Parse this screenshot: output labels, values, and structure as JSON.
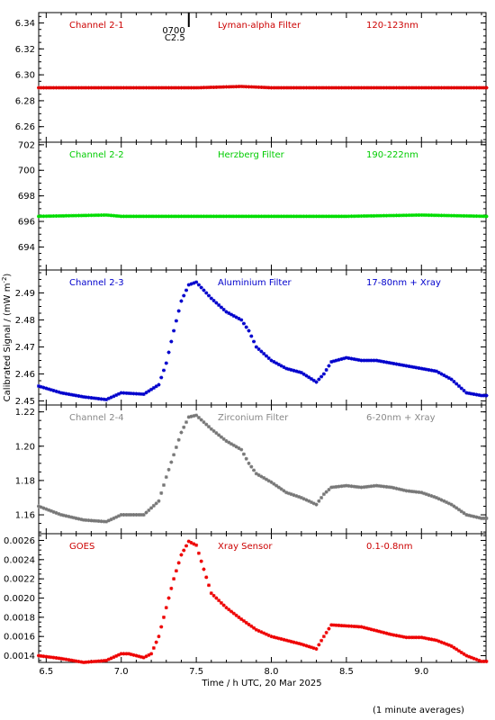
{
  "chart_data": {
    "type": "scatter",
    "xlabel": "Time / h UTC, 20 Mar 2025",
    "ylabel": "Calibrated Signal / (mW m",
    "ylabel_sup": "-2",
    "ylabel_close": ")",
    "footnote": "(1 minute averages)",
    "xlim": [
      6.45,
      9.43
    ],
    "xticks": [
      6.5,
      7.0,
      7.5,
      8.0,
      8.5,
      9.0
    ],
    "xtick_labels": [
      "6.5",
      "7.0",
      "7.5",
      "8.0",
      "8.5",
      "9.0"
    ],
    "event_marker": {
      "x": 7.45,
      "label_top": "0700",
      "label_bottom": "C2.5"
    },
    "panels": [
      {
        "channel": "Channel 2-1",
        "filter": "Lyman-alpha Filter",
        "band": "120-123nm",
        "color": "#e00000",
        "text_color": "#cc0000",
        "ylim": [
          6.248,
          6.348
        ],
        "yticks": [
          "6.26",
          "6.28",
          "6.30",
          "6.32",
          "6.34"
        ],
        "series": {
          "x": [
            6.45,
            7.0,
            7.5,
            7.8,
            8.0,
            8.5,
            9.0,
            9.43
          ],
          "y": [
            6.29,
            6.29,
            6.29,
            6.291,
            6.29,
            6.29,
            6.29,
            6.29
          ]
        }
      },
      {
        "channel": "Channel 2-2",
        "filter": "Herzberg Filter",
        "band": "190-222nm",
        "color": "#00dd00",
        "text_color": "#00cc00",
        "ylim": [
          692.2,
          702.2
        ],
        "yticks": [
          "694",
          "696",
          "698",
          "700",
          "702"
        ],
        "series": {
          "x": [
            6.45,
            6.9,
            7.0,
            7.5,
            8.0,
            8.5,
            9.0,
            9.43
          ],
          "y": [
            696.4,
            696.5,
            696.4,
            696.4,
            696.4,
            696.4,
            696.5,
            696.4
          ]
        }
      },
      {
        "channel": "Channel 2-3",
        "filter": "Aluminium Filter",
        "band": "17-80nm + Xray",
        "color": "#0000cc",
        "text_color": "#0000cc",
        "ylim": [
          2.4485,
          2.4985
        ],
        "yticks": [
          "2.45",
          "2.46",
          "2.47",
          "2.48",
          "2.49"
        ],
        "series": {
          "x": [
            6.45,
            6.6,
            6.75,
            6.9,
            7.0,
            7.15,
            7.25,
            7.3,
            7.35,
            7.4,
            7.45,
            7.5,
            7.6,
            7.7,
            7.8,
            7.85,
            7.9,
            8.0,
            8.1,
            8.2,
            8.3,
            8.35,
            8.4,
            8.5,
            8.6,
            8.7,
            8.8,
            8.9,
            9.0,
            9.1,
            9.2,
            9.3,
            9.4
          ],
          "y": [
            2.4555,
            2.453,
            2.4515,
            2.4505,
            2.453,
            2.4525,
            2.456,
            2.464,
            2.476,
            2.487,
            2.493,
            2.494,
            2.488,
            2.483,
            2.48,
            2.476,
            2.47,
            2.465,
            2.462,
            2.4605,
            2.457,
            2.46,
            2.4645,
            2.466,
            2.465,
            2.465,
            2.464,
            2.463,
            2.462,
            2.461,
            2.458,
            2.453,
            2.452
          ]
        }
      },
      {
        "channel": "Channel 2-4",
        "filter": "Zirconium Filter",
        "band": "6-20nm + Xray",
        "color": "#777777",
        "text_color": "#888888",
        "ylim": [
          1.149,
          1.224
        ],
        "yticks": [
          "1.16",
          "1.18",
          "1.20",
          "1.22"
        ],
        "series": {
          "x": [
            6.45,
            6.6,
            6.75,
            6.9,
            7.0,
            7.15,
            7.25,
            7.3,
            7.35,
            7.4,
            7.45,
            7.5,
            7.6,
            7.7,
            7.8,
            7.85,
            7.9,
            8.0,
            8.1,
            8.2,
            8.3,
            8.35,
            8.4,
            8.5,
            8.6,
            8.7,
            8.8,
            8.9,
            9.0,
            9.1,
            9.2,
            9.3,
            9.4
          ],
          "y": [
            1.165,
            1.16,
            1.157,
            1.156,
            1.16,
            1.16,
            1.168,
            1.182,
            1.195,
            1.208,
            1.217,
            1.218,
            1.21,
            1.203,
            1.198,
            1.19,
            1.184,
            1.179,
            1.173,
            1.17,
            1.166,
            1.172,
            1.176,
            1.177,
            1.176,
            1.177,
            1.176,
            1.174,
            1.173,
            1.17,
            1.166,
            1.16,
            1.158
          ]
        }
      },
      {
        "channel": "GOES",
        "filter": "Xray Sensor",
        "band": "0.1-0.8nm",
        "color": "#ee0000",
        "text_color": "#cc0000",
        "ylim": [
          0.00133,
          0.00267
        ],
        "yticks": [
          "0.0014",
          "0.0016",
          "0.0018",
          "0.0020",
          "0.0022",
          "0.0024",
          "0.0026"
        ],
        "series": {
          "x": [
            6.45,
            6.6,
            6.75,
            6.9,
            7.0,
            7.05,
            7.15,
            7.2,
            7.25,
            7.3,
            7.35,
            7.4,
            7.45,
            7.5,
            7.55,
            7.6,
            7.7,
            7.8,
            7.9,
            8.0,
            8.1,
            8.2,
            8.3,
            8.35,
            8.4,
            8.5,
            8.6,
            8.7,
            8.8,
            8.9,
            9.0,
            9.1,
            9.2,
            9.3,
            9.4
          ],
          "y": [
            0.0014,
            0.00137,
            0.00133,
            0.00135,
            0.00142,
            0.00142,
            0.00138,
            0.00142,
            0.0016,
            0.0019,
            0.0022,
            0.00245,
            0.00259,
            0.00255,
            0.0023,
            0.00205,
            0.0019,
            0.00178,
            0.00167,
            0.0016,
            0.00156,
            0.00152,
            0.00147,
            0.0016,
            0.00172,
            0.00171,
            0.0017,
            0.00166,
            0.00162,
            0.00159,
            0.00159,
            0.00156,
            0.0015,
            0.0014,
            0.00134
          ]
        }
      }
    ]
  }
}
